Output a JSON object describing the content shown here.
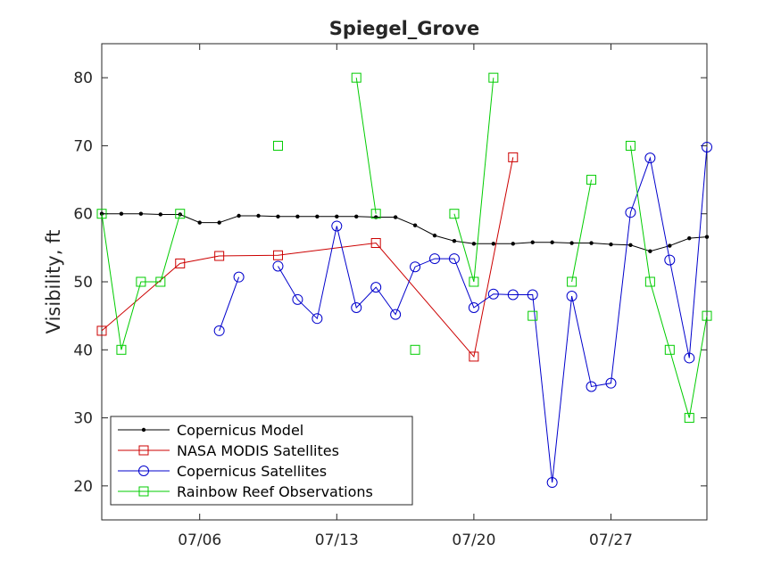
{
  "chart_data": {
    "type": "line",
    "title": "Spiegel_Grove",
    "xlabel": "",
    "ylabel": "Visibility, ft",
    "x_range_days": [
      1,
      31
    ],
    "ylim": [
      15,
      85
    ],
    "x_ticks": [
      {
        "day": 6,
        "label": "07/06"
      },
      {
        "day": 13,
        "label": "07/13"
      },
      {
        "day": 20,
        "label": "07/20"
      },
      {
        "day": 27,
        "label": "07/27"
      }
    ],
    "y_ticks": [
      20,
      30,
      40,
      50,
      60,
      70,
      80
    ],
    "grid": false,
    "legend_position": "bottom-left",
    "series": [
      {
        "name": "Copernicus Model",
        "color": "#000000",
        "marker": "dot",
        "segments": [
          [
            [
              1,
              60
            ],
            [
              2,
              60
            ],
            [
              3,
              60
            ],
            [
              4,
              59.9
            ],
            [
              5,
              59.9
            ],
            [
              6,
              58.7
            ],
            [
              7,
              58.7
            ],
            [
              8,
              59.7
            ],
            [
              9,
              59.7
            ],
            [
              10,
              59.6
            ],
            [
              11,
              59.6
            ],
            [
              12,
              59.6
            ],
            [
              13,
              59.6
            ],
            [
              14,
              59.6
            ],
            [
              15,
              59.5
            ],
            [
              16,
              59.5
            ],
            [
              17,
              58.3
            ],
            [
              18,
              56.8
            ],
            [
              19,
              56
            ],
            [
              20,
              55.6
            ],
            [
              21,
              55.6
            ],
            [
              22,
              55.6
            ],
            [
              23,
              55.8
            ],
            [
              24,
              55.8
            ],
            [
              25,
              55.7
            ],
            [
              26,
              55.7
            ],
            [
              27,
              55.5
            ],
            [
              28,
              55.4
            ],
            [
              29,
              54.5
            ],
            [
              30,
              55.3
            ],
            [
              31,
              56.4
            ],
            [
              31.9,
              56.6
            ]
          ]
        ]
      },
      {
        "name": "NASA MODIS Satellites",
        "color": "#cc0000",
        "marker": "square",
        "segments": [
          [
            [
              1,
              42.8
            ],
            [
              5,
              52.7
            ],
            [
              7,
              53.8
            ],
            [
              10,
              53.9
            ],
            [
              15,
              55.7
            ],
            [
              20,
              39
            ],
            [
              22,
              68.3
            ]
          ]
        ]
      },
      {
        "name": "Copernicus Satellites",
        "color": "#0000cc",
        "marker": "circle",
        "segments": [
          [
            [
              7,
              42.8
            ],
            [
              8,
              50.7
            ]
          ],
          [
            [
              10,
              52.3
            ],
            [
              11,
              47.4
            ],
            [
              12,
              44.6
            ],
            [
              13,
              58.2
            ],
            [
              14,
              46.2
            ],
            [
              15,
              49.2
            ],
            [
              16,
              45.2
            ],
            [
              17,
              52.2
            ],
            [
              18,
              53.4
            ],
            [
              19,
              53.4
            ],
            [
              20,
              46.2
            ],
            [
              21,
              48.2
            ],
            [
              22,
              48.1
            ],
            [
              23,
              48.1
            ],
            [
              24,
              20.5
            ],
            [
              25,
              47.9
            ],
            [
              26,
              34.6
            ],
            [
              27,
              35.1
            ],
            [
              28,
              60.2
            ],
            [
              29,
              68.2
            ],
            [
              30,
              53.2
            ],
            [
              31,
              38.8
            ],
            [
              31.9,
              69.8
            ]
          ]
        ]
      },
      {
        "name": "Rainbow Reef Observations",
        "color": "#00cc00",
        "marker": "square",
        "segments": [
          [
            [
              1,
              60
            ],
            [
              2,
              40
            ],
            [
              3,
              50
            ],
            [
              4,
              50
            ],
            [
              5,
              60
            ]
          ],
          [
            [
              10,
              70
            ]
          ],
          [
            [
              14,
              80
            ],
            [
              15,
              60
            ]
          ],
          [
            [
              17,
              40
            ]
          ],
          [
            [
              19,
              60
            ],
            [
              20,
              50
            ],
            [
              21,
              80
            ]
          ],
          [
            [
              23,
              45
            ]
          ],
          [
            [
              25,
              50
            ],
            [
              26,
              65
            ]
          ],
          [
            [
              28,
              70
            ],
            [
              29,
              50
            ],
            [
              30,
              40
            ],
            [
              31,
              30
            ],
            [
              31.9,
              45
            ]
          ]
        ]
      }
    ]
  }
}
